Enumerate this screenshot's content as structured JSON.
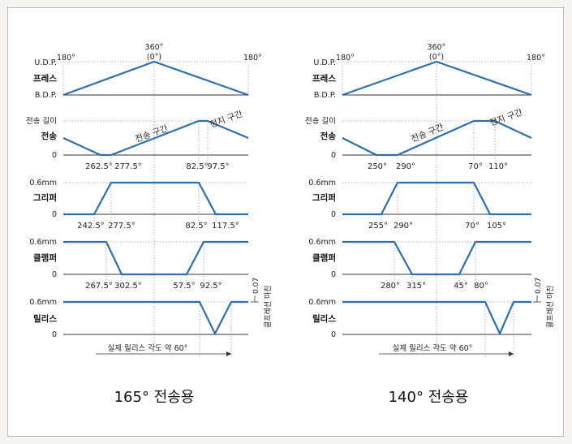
{
  "colors": {
    "curve": "#2f6ea6",
    "axis": "#333333",
    "guide": "#9a9a9a"
  },
  "panels": [
    {
      "caption": "165° 전송용",
      "top": {
        "left_angle": "180°",
        "center_angle": "360°",
        "center_angle_sub": "(0°)",
        "right_angle": "180°",
        "udp": "U.D.P.",
        "bdp": "B.D.P.",
        "press": "프레스"
      },
      "transfer": {
        "label": "전송",
        "length_label": "전송 길이",
        "zero": "0",
        "zone_move": "전송 구간",
        "zone_stop": "정지 구간",
        "angles": [
          "262.5°",
          "277.5°",
          "82.5°",
          "97.5°"
        ]
      },
      "gripper": {
        "label": "그리퍼",
        "level": "0.6mm",
        "zero": "0",
        "angles": [
          "242.5°",
          "277.5°",
          "82.5°",
          "117.5°"
        ]
      },
      "clamper": {
        "label": "클램퍼",
        "level": "0.6mm",
        "zero": "0",
        "angles": [
          "267.5°",
          "302.5°",
          "57.5°",
          "92.5°"
        ]
      },
      "release": {
        "label": "릴리스",
        "level": "0.6mm",
        "zero": "0",
        "margin_value": "0.07",
        "margin_label": "클프레션 마진",
        "actual": "실제 릴리스 각도 약 60°"
      }
    },
    {
      "caption": "140° 전송용",
      "top": {
        "left_angle": "180°",
        "center_angle": "360°",
        "center_angle_sub": "(0°)",
        "right_angle": "180°",
        "udp": "U.D.P.",
        "bdp": "B.D.P.",
        "press": "프레스"
      },
      "transfer": {
        "label": "전송",
        "length_label": "전송 길이",
        "zero": "0",
        "zone_move": "전송 구간",
        "zone_stop": "정지 구간",
        "angles": [
          "250°",
          "290°",
          "70°",
          "110°"
        ]
      },
      "gripper": {
        "label": "그리퍼",
        "level": "0.6mm",
        "zero": "0",
        "angles": [
          "255°",
          "290°",
          "70°",
          "105°"
        ]
      },
      "clamper": {
        "label": "클램퍼",
        "level": "0.6mm",
        "zero": "0",
        "angles": [
          "280°",
          "315°",
          "45°",
          "80°"
        ]
      },
      "release": {
        "label": "릴리스",
        "level": "0.6mm",
        "zero": "0",
        "margin_value": "0.07",
        "margin_label": "클프레션 마진",
        "actual": "실제 릴리스 각도 약 60°"
      }
    }
  ]
}
